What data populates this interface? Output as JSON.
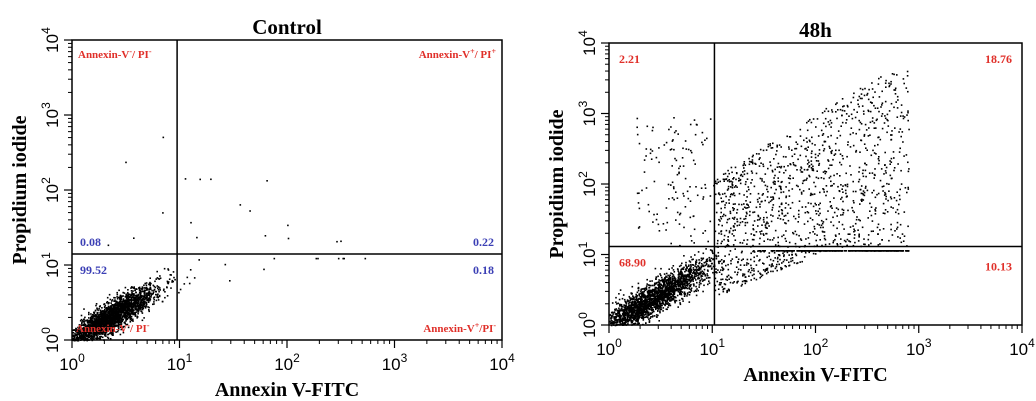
{
  "chart_data": [
    {
      "type": "scatter",
      "title": "Control",
      "xlabel": "Annexin V-FITC",
      "ylabel": "Propidium iodide",
      "xscale": "log",
      "yscale": "log",
      "xlim": [
        1,
        10000
      ],
      "ylim": [
        1,
        10000
      ],
      "xticks": [
        {
          "base": "10",
          "exp": "0"
        },
        {
          "base": "10",
          "exp": "1"
        },
        {
          "base": "10",
          "exp": "2"
        },
        {
          "base": "10",
          "exp": "3"
        },
        {
          "base": "10",
          "exp": "4"
        }
      ],
      "yticks": [
        {
          "base": "10",
          "exp": "0"
        },
        {
          "base": "10",
          "exp": "1"
        },
        {
          "base": "10",
          "exp": "2"
        },
        {
          "base": "10",
          "exp": "3"
        },
        {
          "base": "10",
          "exp": "4"
        }
      ],
      "gate": {
        "x": 9.5,
        "y": 14
      },
      "quadrant_labels": {
        "upper_left": {
          "prefix": "Annexin-V",
          "sup1": "-",
          "mid": "/ PI",
          "sup2": "-"
        },
        "upper_right": {
          "prefix": "Annexin-V",
          "sup1": "+",
          "mid": "/ PI",
          "sup2": "+"
        },
        "lower_left": {
          "prefix": "Annexin-V",
          "sup1": "-",
          "mid": "/ PI",
          "sup2": "-"
        },
        "lower_right": {
          "prefix": "Annexin-V",
          "sup1": "+",
          "mid": "/PI",
          "sup2": "-"
        }
      },
      "quadrant_values": {
        "upper_left": "0.08",
        "upper_right": "0.22",
        "lower_left": "99.52",
        "lower_right": "0.18"
      },
      "value_color": "#3b3fb5",
      "label_color": "#e0302a",
      "population": {
        "center": [
          2.2,
          2.0
        ],
        "spread": [
          0.22,
          0.18
        ],
        "n": 2600
      },
      "events": [
        {
          "q": "upper_left",
          "fraction": 0.0008
        },
        {
          "q": "upper_right",
          "fraction": 0.0022
        },
        {
          "q": "lower_left",
          "fraction": 0.9952
        },
        {
          "q": "lower_right",
          "fraction": 0.0018
        }
      ]
    },
    {
      "type": "scatter",
      "title": "48h",
      "xlabel": "Annexin V-FITC",
      "ylabel": "Propidium iodide",
      "xscale": "log",
      "yscale": "log",
      "xlim": [
        1,
        10000
      ],
      "ylim": [
        1,
        10000
      ],
      "xticks": [
        {
          "base": "10",
          "exp": "0"
        },
        {
          "base": "10",
          "exp": "1"
        },
        {
          "base": "10",
          "exp": "2"
        },
        {
          "base": "10",
          "exp": "3"
        },
        {
          "base": "10",
          "exp": "4"
        }
      ],
      "yticks": [
        {
          "base": "10",
          "exp": "0"
        },
        {
          "base": "10",
          "exp": "1"
        },
        {
          "base": "10",
          "exp": "2"
        },
        {
          "base": "10",
          "exp": "3"
        },
        {
          "base": "10",
          "exp": "4"
        }
      ],
      "gate": {
        "x": 10.5,
        "y": 13
      },
      "quadrant_values": {
        "upper_left": "2.21",
        "upper_right": "18.76",
        "lower_left": "68.90",
        "lower_right": "10.13"
      },
      "value_color": "#e0302a",
      "population": {
        "center": [
          2.5,
          2.3
        ],
        "spread": [
          0.3,
          0.22
        ],
        "n": 2400
      },
      "events": [
        {
          "q": "upper_left",
          "fraction": 0.0221
        },
        {
          "q": "upper_right",
          "fraction": 0.1876
        },
        {
          "q": "lower_left",
          "fraction": 0.689
        },
        {
          "q": "lower_right",
          "fraction": 0.1013
        }
      ]
    }
  ]
}
